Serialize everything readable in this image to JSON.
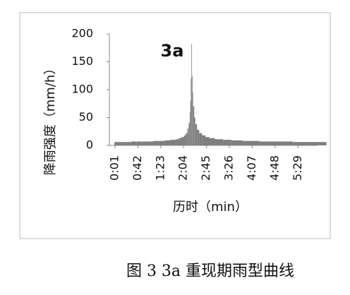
{
  "chart_data": {
    "type": "bar",
    "annotation": "3a",
    "x_label": "历时（min）",
    "y_label": "降雨强度（mm/h）",
    "x": [
      0,
      10,
      20,
      30,
      40,
      50,
      60,
      70,
      80,
      90,
      100,
      110,
      115,
      120,
      125,
      128,
      131,
      133,
      135,
      136,
      137,
      138,
      139,
      140,
      141,
      143,
      145,
      148,
      152,
      157,
      163,
      170,
      180,
      195,
      210,
      230,
      260,
      290,
      320,
      350
    ],
    "values": [
      6,
      6,
      6,
      7,
      7,
      7,
      7,
      8,
      8,
      9,
      10,
      11,
      13,
      15,
      18,
      22,
      30,
      40,
      60,
      80,
      120,
      182,
      125,
      95,
      70,
      50,
      38,
      28,
      22,
      18,
      15,
      13,
      11,
      10,
      9,
      8,
      7,
      7,
      6,
      6
    ],
    "color": "#7f7f7f",
    "xlim": [
      -9,
      364
    ],
    "ylim": [
      0,
      200
    ],
    "yticks": [
      0,
      50,
      100,
      150,
      200
    ],
    "xticks": [
      {
        "value": 1,
        "label": "0:01"
      },
      {
        "value": 42,
        "label": "0:42"
      },
      {
        "value": 83,
        "label": "1:23"
      },
      {
        "value": 124,
        "label": "2:04"
      },
      {
        "value": 165,
        "label": "2:45"
      },
      {
        "value": 206,
        "label": "3:26"
      },
      {
        "value": 247,
        "label": "4:07"
      },
      {
        "value": 288,
        "label": "4:48"
      },
      {
        "value": 329,
        "label": "5:29"
      }
    ]
  },
  "caption": "图 3 3a 重现期雨型曲线"
}
